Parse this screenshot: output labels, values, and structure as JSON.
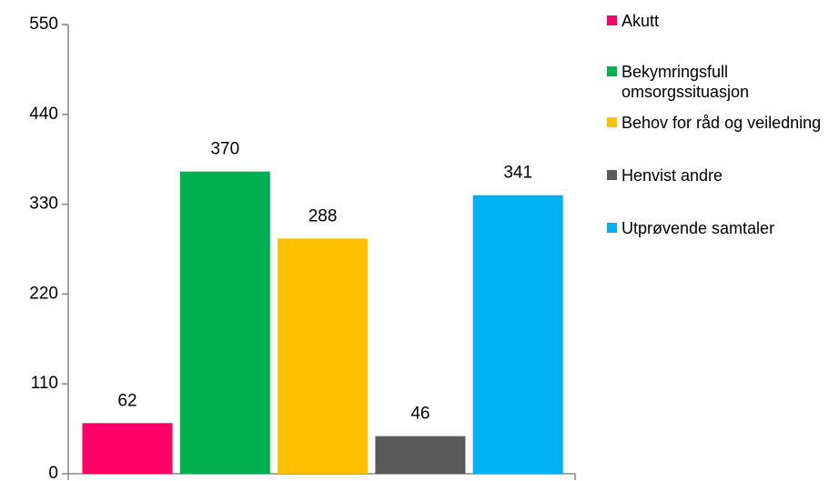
{
  "chart_data": {
    "type": "bar",
    "series": [
      {
        "name": "Akutt",
        "color": "#ff0066",
        "values": [
          62
        ]
      },
      {
        "name": "Bekymringsfull omsorgssituasjon",
        "color": "#00b050",
        "values": [
          370
        ]
      },
      {
        "name": "Behov for råd og veiledning",
        "color": "#ffc000",
        "values": [
          288
        ]
      },
      {
        "name": "Henvist andre",
        "color": "#595959",
        "values": [
          46
        ]
      },
      {
        "name": "Utprøvende samtaler",
        "color": "#00b0f0",
        "values": [
          341
        ]
      }
    ],
    "ylim": [
      0,
      550
    ],
    "yticks": [
      0,
      110,
      220,
      330,
      440,
      550
    ],
    "grid": false
  }
}
